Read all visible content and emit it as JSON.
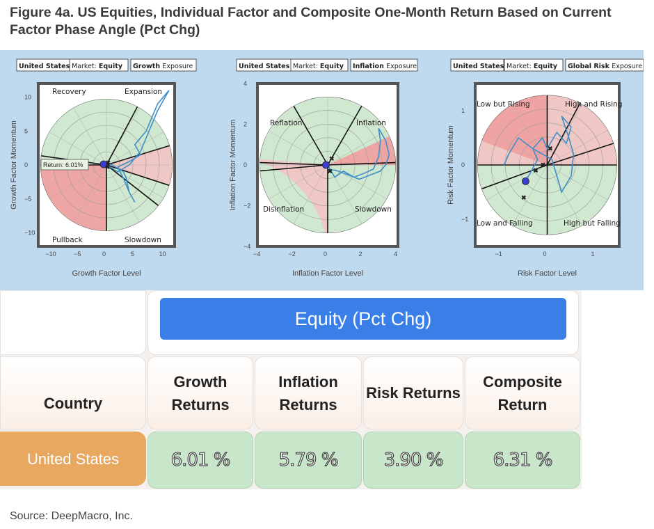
{
  "figure": {
    "title": "Figure 4a. US Equities, Individual Factor and Composite One-Month Return Based on Current Factor Phase Angle (Pct Chg)",
    "source": "Source: DeepMacro, Inc."
  },
  "chart_data": [
    {
      "type": "scatter",
      "tags": {
        "country": "United States",
        "market_label": "Market:",
        "market": "Equity",
        "factor": "Growth",
        "suffix": "Exposure"
      },
      "xlabel": "Growth Factor Level",
      "ylabel": "Growth Factor Momentum",
      "xlim": [
        -12,
        12
      ],
      "ylim": [
        -12,
        12
      ],
      "xticks": [
        "−10",
        "−5",
        "0",
        "5",
        "10"
      ],
      "yticks": [
        "10",
        "5",
        "0",
        "−5",
        "−10"
      ],
      "quadrants": [
        "Recovery",
        "Expansion",
        "Pullback",
        "Slowdown"
      ],
      "annotation": "Return: 6.01%",
      "current_point": [
        -0.5,
        0.1
      ]
    },
    {
      "type": "scatter",
      "tags": {
        "country": "United States",
        "market_label": "Market:",
        "market": "Equity",
        "factor": "Inflation",
        "suffix": "Exposure"
      },
      "xlabel": "Inflation Factor Level",
      "ylabel": "Inflation Factor Momentum",
      "xlim": [
        -4,
        4
      ],
      "ylim": [
        -4,
        4
      ],
      "xticks": [
        "−4",
        "−2",
        "0",
        "2",
        "4"
      ],
      "yticks": [
        "4",
        "2",
        "0",
        "−2",
        "−4"
      ],
      "quadrants": [
        "Reflation",
        "Inflation",
        "Disinflation",
        "Slowdown"
      ],
      "current_point": [
        -0.1,
        0.0
      ]
    },
    {
      "type": "scatter",
      "tags": {
        "country": "United States",
        "market_label": "Market:",
        "market": "Equity",
        "factor": "Global Risk",
        "suffix": "Exposure"
      },
      "xlabel": "Risk Factor Level",
      "ylabel": "Risk Factor Momentum",
      "xlim": [
        -1.5,
        1.5
      ],
      "ylim": [
        -1.5,
        1.5
      ],
      "xticks": [
        "−1",
        "0",
        "1"
      ],
      "yticks": [
        "1",
        "0",
        "−1"
      ],
      "quadrants": [
        "Low but Rising",
        "High and Rising",
        "Low and Falling",
        "High but Falling"
      ],
      "current_point": [
        -0.45,
        -0.3
      ]
    }
  ],
  "table": {
    "banner": "Equity (Pct Chg)",
    "headers": [
      "Country",
      "Growth Returns",
      "Inflation Returns",
      "Risk Returns",
      "Composite Return"
    ],
    "rows": [
      {
        "country": "United States",
        "values": [
          "6.01 %",
          "5.79 %",
          "3.90 %",
          "6.31 %"
        ]
      }
    ]
  }
}
